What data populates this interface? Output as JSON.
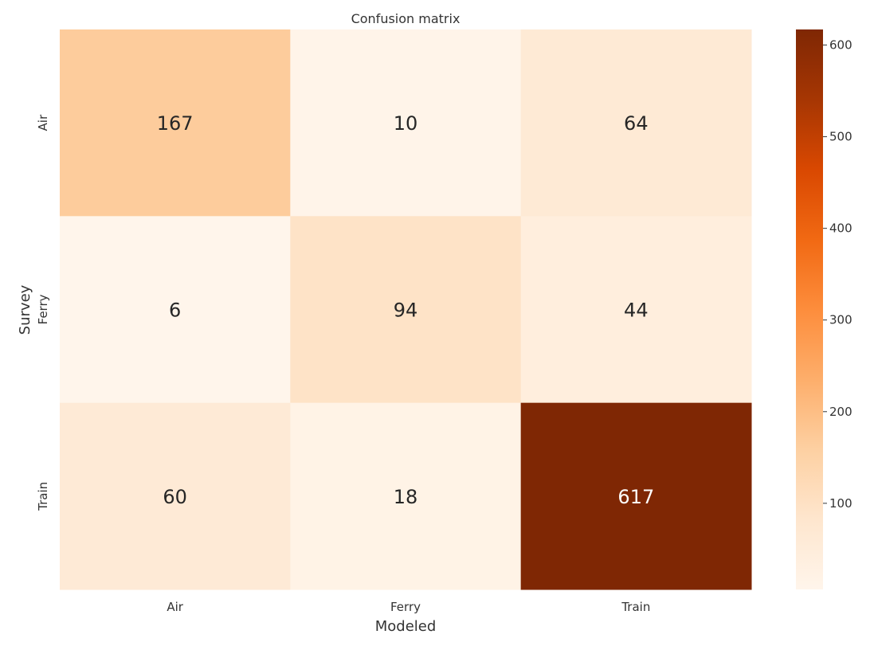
{
  "chart_data": {
    "type": "heatmap",
    "title": "Confusion matrix",
    "xlabel": "Modeled",
    "ylabel": "Survey",
    "x_categories": [
      "Air",
      "Ferry",
      "Train"
    ],
    "y_categories": [
      "Air",
      "Ferry",
      "Train"
    ],
    "values": [
      [
        167,
        10,
        64
      ],
      [
        6,
        94,
        44
      ],
      [
        60,
        18,
        617
      ]
    ],
    "colormap": "Oranges",
    "colorbar": {
      "min": 6,
      "max": 617,
      "ticks": [
        100,
        200,
        300,
        400,
        500,
        600
      ],
      "tick_labels": [
        "100",
        "200",
        "300",
        "400",
        "500",
        "600"
      ]
    },
    "colors": {
      "low": "#fff5eb",
      "high": "#7f2704",
      "text_dark": "#262626",
      "text_light": "#ffffff"
    }
  }
}
